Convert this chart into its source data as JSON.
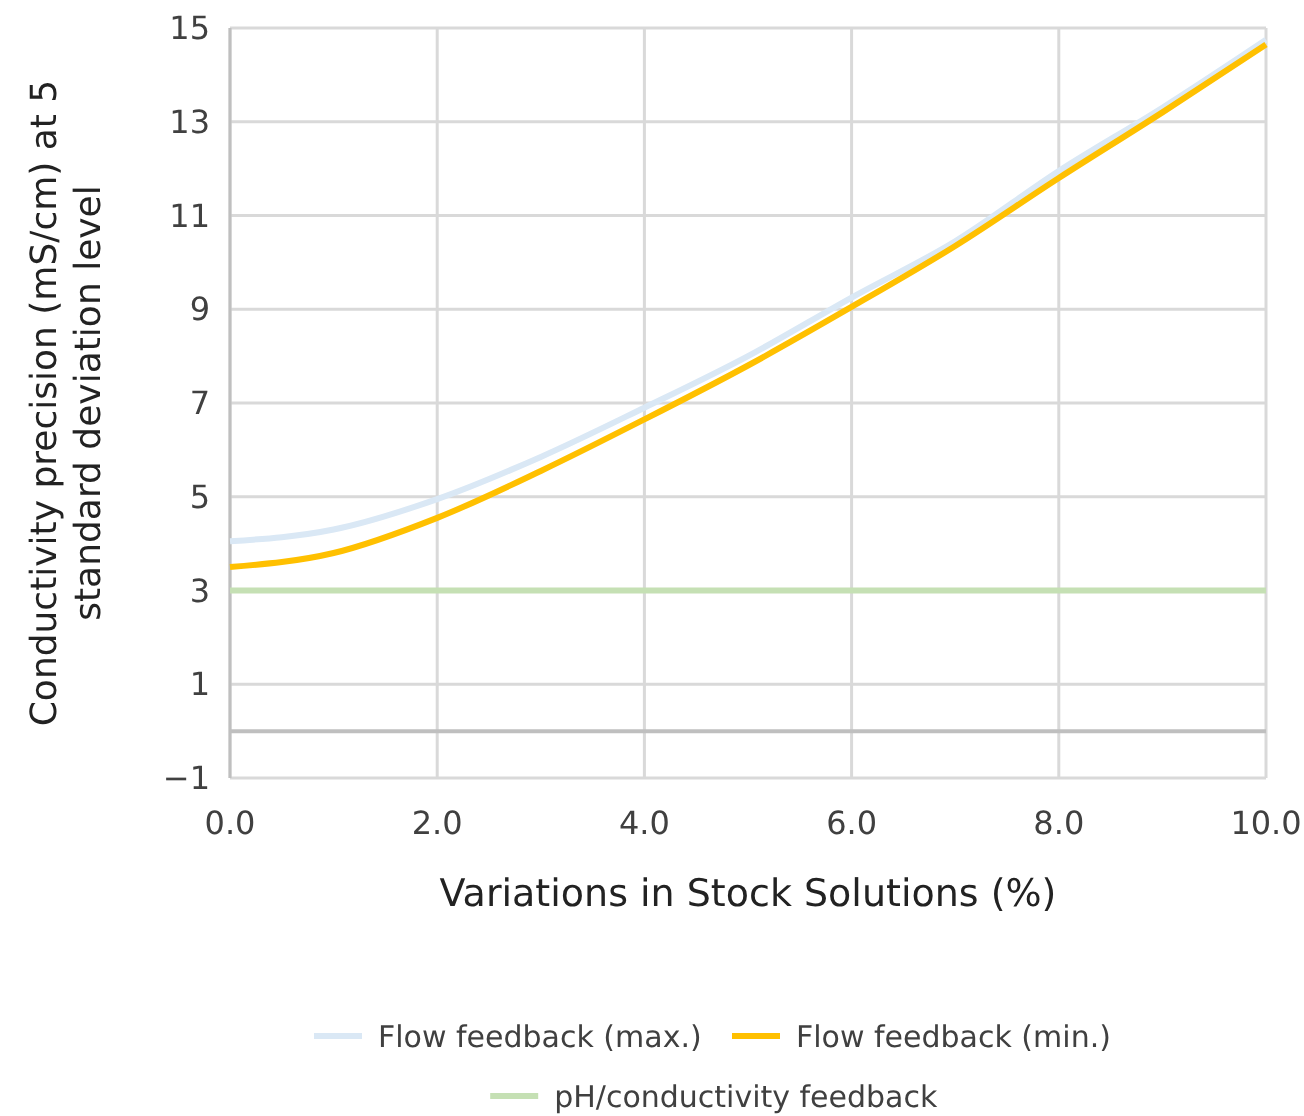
{
  "chart_data": {
    "type": "line",
    "xlabel": "Variations in Stock Solutions (%)",
    "ylabel": "Conductivity precision (mS/cm) at 5 standard deviation level",
    "x": [
      0,
      1,
      2,
      3,
      4,
      5,
      6,
      7,
      8,
      9,
      10
    ],
    "xlim": [
      0,
      10
    ],
    "xticks": [
      {
        "value": 0,
        "label": "0.0"
      },
      {
        "value": 2,
        "label": "2.0"
      },
      {
        "value": 4,
        "label": "4.0"
      },
      {
        "value": 6,
        "label": "6.0"
      },
      {
        "value": 8,
        "label": "8.0"
      },
      {
        "value": 10,
        "label": "10.0"
      }
    ],
    "ylim": [
      -1,
      15
    ],
    "yticks": [
      {
        "value": -1,
        "label": "−1"
      },
      1,
      3,
      5,
      7,
      9,
      11,
      13,
      15
    ],
    "grid": true,
    "legend": "bottom",
    "marker": "none",
    "line_style": "solid",
    "ref_lines": [
      {
        "axis": "y",
        "value": 0,
        "color": "#bfbfbf"
      }
    ],
    "series": [
      {
        "name": "Flow feedback (max.)",
        "color": "#dae8f5",
        "values": [
          4.05,
          4.3,
          4.95,
          5.85,
          6.9,
          8.0,
          9.25,
          10.45,
          11.95,
          13.3,
          14.75
        ]
      },
      {
        "name": "Flow feedback (min.)",
        "color": "#ffc000",
        "values": [
          3.5,
          3.8,
          4.55,
          5.55,
          6.65,
          7.8,
          9.05,
          10.35,
          11.8,
          13.2,
          14.65
        ]
      },
      {
        "name": "pH/conductivity feedback",
        "color": "#c5e0b4",
        "values": [
          3,
          3,
          3,
          3,
          3,
          3,
          3,
          3,
          3,
          3,
          3
        ]
      }
    ]
  }
}
